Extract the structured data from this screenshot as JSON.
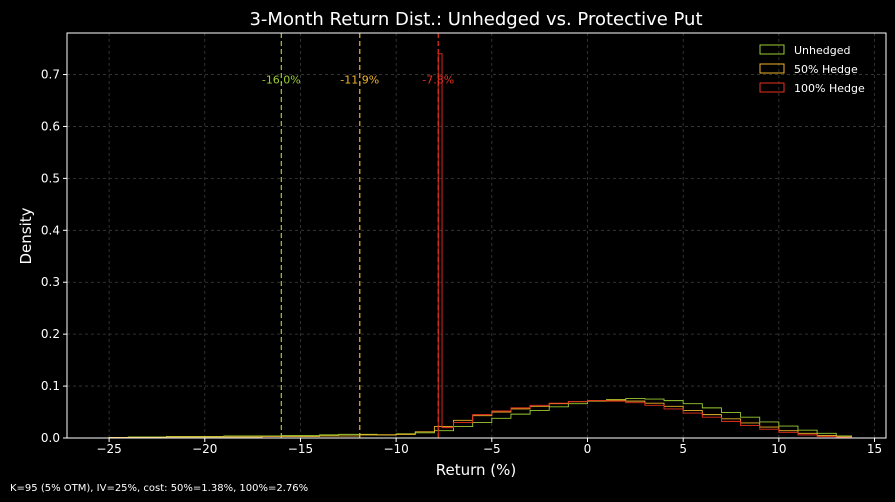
{
  "chart_data": {
    "type": "histogram-step",
    "title": "3-Month Return Dist.: Unhedged vs. Protective Put",
    "xlabel": "Return (%)",
    "ylabel": "Density",
    "xlim": [
      -27.2,
      15.6
    ],
    "ylim": [
      0,
      0.78
    ],
    "xticks": [
      -25,
      -20,
      -15,
      -10,
      -5,
      0,
      5,
      10,
      15
    ],
    "xtick_labels": [
      "−25",
      "−20",
      "−15",
      "−10",
      "−5",
      "0",
      "5",
      "10",
      "15"
    ],
    "yticks": [
      0.0,
      0.1,
      0.2,
      0.3,
      0.4,
      0.5,
      0.6,
      0.7
    ],
    "ytick_labels": [
      "0.0",
      "0.1",
      "0.2",
      "0.3",
      "0.4",
      "0.5",
      "0.6",
      "0.7"
    ],
    "grid": true,
    "legend_position": "top-right",
    "series": [
      {
        "name": "Unhedged",
        "color": "#9acd32",
        "bin_edges": [
          -25,
          -24,
          -23,
          -22,
          -21,
          -20,
          -19,
          -18,
          -17,
          -16,
          -15,
          -14,
          -13,
          -12,
          -11,
          -10,
          -9,
          -8,
          -7,
          -6,
          -5,
          -4,
          -3,
          -2,
          -1,
          0,
          1,
          2,
          3,
          4,
          5,
          6,
          7,
          8,
          9,
          10,
          11,
          12,
          13,
          13.8
        ],
        "densities": [
          0.001,
          0.002,
          0.002,
          0.003,
          0.003,
          0.003,
          0.004,
          0.004,
          0.004,
          0.005,
          0.005,
          0.006,
          0.007,
          0.007,
          0.006,
          0.008,
          0.01,
          0.014,
          0.022,
          0.03,
          0.038,
          0.046,
          0.053,
          0.06,
          0.066,
          0.071,
          0.074,
          0.076,
          0.075,
          0.072,
          0.066,
          0.058,
          0.049,
          0.04,
          0.031,
          0.023,
          0.015,
          0.009,
          0.004
        ]
      },
      {
        "name": "50% Hedge",
        "color": "#f0b429",
        "bin_edges": [
          -25,
          -24,
          -23,
          -22,
          -21,
          -20,
          -19,
          -18,
          -17,
          -16,
          -15,
          -14,
          -13,
          -12,
          -11.9,
          -11,
          -10,
          -9,
          -8,
          -7,
          -6,
          -5,
          -4,
          -3,
          -2,
          -1,
          0,
          1,
          2,
          3,
          4,
          5,
          6,
          7,
          8,
          9,
          10,
          11,
          12,
          13,
          13.8
        ],
        "densities": [
          0.001,
          0.001,
          0.001,
          0.002,
          0.002,
          0.002,
          0.002,
          0.002,
          0.003,
          0.003,
          0.003,
          0.004,
          0.004,
          0.004,
          0.006,
          0.006,
          0.007,
          0.012,
          0.022,
          0.034,
          0.043,
          0.05,
          0.056,
          0.061,
          0.066,
          0.07,
          0.072,
          0.073,
          0.071,
          0.067,
          0.061,
          0.053,
          0.045,
          0.037,
          0.029,
          0.021,
          0.014,
          0.009,
          0.005,
          0.002
        ]
      },
      {
        "name": "100% Hedge",
        "color": "#e8301f",
        "bin_edges": [
          -7.8,
          -7.6,
          -7,
          -6,
          -5,
          -4,
          -3,
          -2,
          -1,
          0,
          1,
          2,
          3,
          4,
          5,
          6,
          7,
          8,
          9,
          10,
          11,
          12,
          13,
          13.8
        ],
        "densities": [
          0.74,
          0.02,
          0.03,
          0.045,
          0.052,
          0.058,
          0.063,
          0.067,
          0.07,
          0.072,
          0.071,
          0.068,
          0.063,
          0.056,
          0.048,
          0.04,
          0.032,
          0.024,
          0.017,
          0.011,
          0.006,
          0.003,
          0.001
        ]
      }
    ],
    "var_lines": [
      {
        "x": -16.0,
        "label": "-16.0%",
        "color": "#9acd32"
      },
      {
        "x": -11.9,
        "label": "-11.9%",
        "color": "#f0b429"
      },
      {
        "x": -7.8,
        "label": "-7.8%",
        "color": "#e8301f"
      }
    ],
    "footnote": "K=95 (5% OTM), IV=25%, cost: 50%=1.38%, 100%=2.76%"
  }
}
